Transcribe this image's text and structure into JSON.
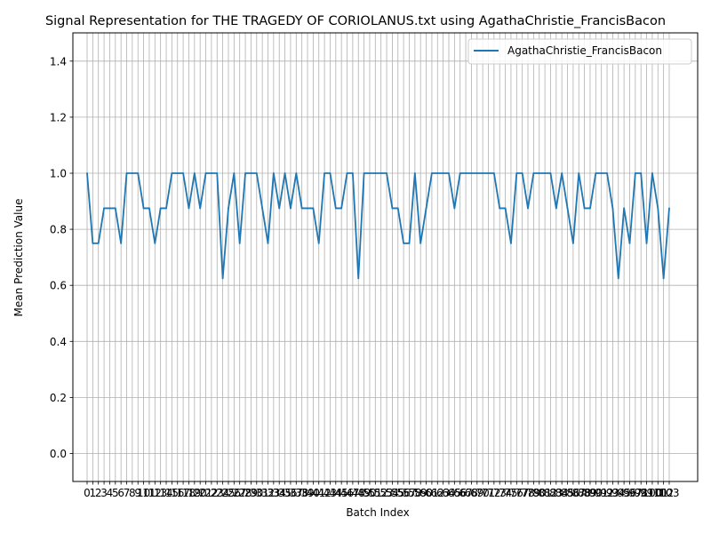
{
  "chart_data": {
    "type": "line",
    "title": "Signal Representation for THE TRAGEDY OF CORIOLANUS.txt using AgathaChristie_FrancisBacon",
    "xlabel": "Batch Index",
    "ylabel": "Mean Prediction Value",
    "xlim": [
      0,
      103
    ],
    "ylim": [
      -0.1,
      1.5
    ],
    "yticks": [
      "0.0",
      "0.2",
      "0.4",
      "0.6",
      "0.8",
      "1.0",
      "1.2",
      "1.4"
    ],
    "grid": true,
    "legend_position": "top-right",
    "series": [
      {
        "name": "AgathaChristie_FrancisBacon",
        "color": "#1f77b4",
        "x": [
          0,
          1,
          2,
          3,
          4,
          5,
          6,
          7,
          8,
          9,
          10,
          11,
          12,
          13,
          14,
          15,
          16,
          17,
          18,
          19,
          20,
          21,
          22,
          23,
          24,
          25,
          26,
          27,
          28,
          29,
          30,
          31,
          32,
          33,
          34,
          35,
          36,
          37,
          38,
          39,
          40,
          41,
          42,
          43,
          44,
          45,
          46,
          47,
          48,
          49,
          50,
          51,
          52,
          53,
          54,
          55,
          56,
          57,
          58,
          59,
          60,
          61,
          62,
          63,
          64,
          65,
          66,
          67,
          68,
          69,
          70,
          71,
          72,
          73,
          74,
          75,
          76,
          77,
          78,
          79,
          80,
          81,
          82,
          83,
          84,
          85,
          86,
          87,
          88,
          89,
          90,
          91,
          92,
          93,
          94,
          95,
          96,
          97,
          98,
          99,
          100,
          101,
          102,
          103
        ],
        "values": [
          1.0,
          0.75,
          0.75,
          0.875,
          0.875,
          0.875,
          0.75,
          1.0,
          1.0,
          1.0,
          0.875,
          0.875,
          0.75,
          0.875,
          0.875,
          1.0,
          1.0,
          1.0,
          0.875,
          1.0,
          0.875,
          1.0,
          1.0,
          1.0,
          0.625,
          0.875,
          1.0,
          0.75,
          1.0,
          1.0,
          1.0,
          0.875,
          0.75,
          1.0,
          0.875,
          1.0,
          0.875,
          1.0,
          0.875,
          0.875,
          0.875,
          0.75,
          1.0,
          1.0,
          0.875,
          0.875,
          1.0,
          1.0,
          0.625,
          1.0,
          1.0,
          1.0,
          1.0,
          1.0,
          0.875,
          0.875,
          0.75,
          0.75,
          1.0,
          0.75,
          0.875,
          1.0,
          1.0,
          1.0,
          1.0,
          0.875,
          1.0,
          1.0,
          1.0,
          1.0,
          1.0,
          1.0,
          1.0,
          0.875,
          0.875,
          0.75,
          1.0,
          1.0,
          0.875,
          1.0,
          1.0,
          1.0,
          1.0,
          0.875,
          1.0,
          0.875,
          0.75,
          1.0,
          0.875,
          0.875,
          1.0,
          1.0,
          1.0,
          0.875,
          0.625,
          0.875,
          0.75,
          1.0,
          1.0,
          0.75,
          1.0,
          0.875,
          0.625,
          0.875
        ]
      }
    ]
  }
}
